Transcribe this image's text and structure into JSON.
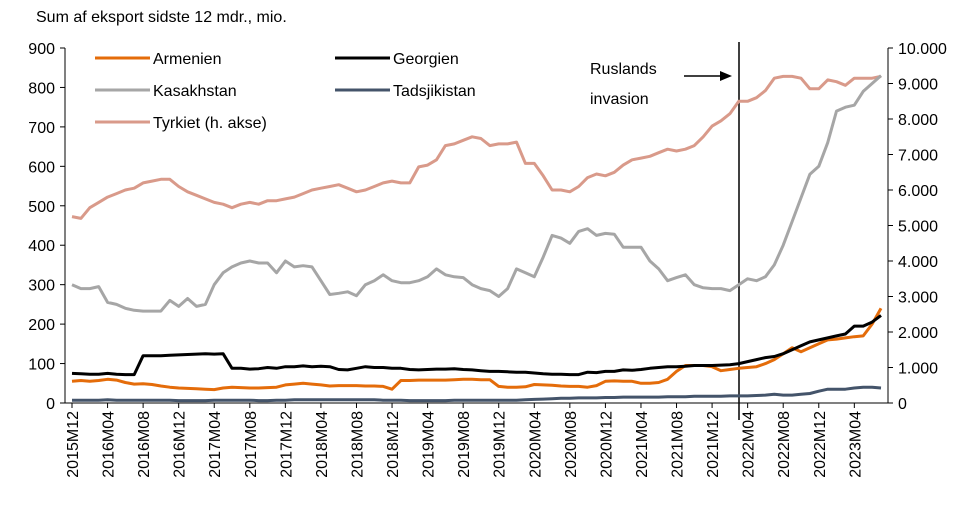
{
  "chart_data": {
    "type": "line",
    "y_label": "Sum af eksport sidste 12 mdr., mio.",
    "annotation": [
      "Ruslands",
      "invasion"
    ],
    "categories": [
      "2015M12",
      null,
      null,
      null,
      "2016M04",
      null,
      null,
      null,
      "2016M08",
      null,
      null,
      null,
      "2016M12",
      null,
      null,
      null,
      "2017M04",
      null,
      null,
      null,
      "2017M08",
      null,
      null,
      null,
      "2017M12",
      null,
      null,
      null,
      "2018M04",
      null,
      null,
      null,
      "2018M08",
      null,
      null,
      null,
      "2018M12",
      null,
      null,
      null,
      "2019M04",
      null,
      null,
      null,
      "2019M08",
      null,
      null,
      null,
      "2019M12",
      null,
      null,
      null,
      "2020M04",
      null,
      null,
      null,
      "2020M08",
      null,
      null,
      null,
      "2020M12",
      null,
      null,
      null,
      "2021M04",
      null,
      null,
      null,
      "2021M08",
      null,
      null,
      null,
      "2021M12",
      null,
      null,
      null,
      "2022M04",
      null,
      null,
      null,
      "2022M08",
      null,
      null,
      null,
      "2022M12",
      null,
      null,
      null,
      "2023M04",
      null,
      null,
      null
    ],
    "ylim": [
      0,
      900
    ],
    "yticks": [
      0,
      100,
      200,
      300,
      400,
      500,
      600,
      700,
      800,
      900
    ],
    "y2lim": [
      0,
      10000
    ],
    "y2ticks": [
      0,
      {
        "value": 1000,
        "label": "1.000"
      },
      {
        "value": 2000,
        "label": "2.000"
      },
      {
        "value": 3000,
        "label": "3.000"
      },
      {
        "value": 4000,
        "label": "4.000"
      },
      {
        "value": 5000,
        "label": "5.000"
      },
      {
        "value": 6000,
        "label": "6.000"
      },
      {
        "value": 7000,
        "label": "7.000"
      },
      {
        "value": 8000,
        "label": "8.000"
      },
      {
        "value": 9000,
        "label": "9.000"
      },
      {
        "value": 10000,
        "label": "10.000"
      }
    ],
    "legend": "top-left",
    "series": [
      {
        "name": "Armenien",
        "color": "#e46c0a",
        "values": [
          55,
          57,
          55,
          57,
          60,
          58,
          52,
          48,
          49,
          47,
          43,
          40,
          38,
          37,
          36,
          35,
          34,
          38,
          40,
          39,
          38,
          38,
          39,
          40,
          46,
          48,
          50,
          48,
          46,
          43,
          44,
          44,
          44,
          43,
          43,
          42,
          35,
          57,
          57,
          58,
          58,
          58,
          58,
          59,
          60,
          60,
          59,
          59,
          42,
          40,
          40,
          41,
          47,
          46,
          45,
          43,
          42,
          42,
          40,
          44,
          55,
          56,
          55,
          55,
          50,
          50,
          52,
          60,
          80,
          95,
          95,
          95,
          92,
          82,
          85,
          88,
          90,
          92,
          100,
          110,
          125,
          140,
          130,
          140,
          150,
          160,
          162,
          165,
          168,
          170,
          200,
          240
        ]
      },
      {
        "name": "Georgien",
        "color": "#000000",
        "values": [
          75,
          74,
          73,
          73,
          75,
          73,
          72,
          72,
          120,
          120,
          120,
          121,
          122,
          123,
          124,
          125,
          124,
          125,
          88,
          88,
          86,
          87,
          90,
          88,
          92,
          92,
          94,
          92,
          93,
          92,
          85,
          84,
          88,
          92,
          90,
          90,
          88,
          88,
          85,
          84,
          85,
          86,
          86,
          87,
          85,
          84,
          82,
          80,
          80,
          79,
          78,
          78,
          76,
          74,
          73,
          73,
          72,
          72,
          78,
          77,
          80,
          80,
          84,
          83,
          85,
          88,
          90,
          92,
          92,
          93,
          95,
          95,
          95,
          96,
          97,
          100,
          105,
          110,
          115,
          118,
          125,
          135,
          145,
          155,
          160,
          165,
          170,
          175,
          195,
          195,
          205,
          222
        ]
      },
      {
        "name": "Kasakhstan",
        "color": "#a6a6a6",
        "values": [
          300,
          290,
          290,
          295,
          255,
          250,
          240,
          235,
          233,
          233,
          233,
          260,
          245,
          265,
          245,
          250,
          300,
          330,
          345,
          355,
          360,
          355,
          355,
          330,
          360,
          345,
          348,
          345,
          310,
          275,
          278,
          282,
          272,
          300,
          310,
          325,
          310,
          305,
          305,
          310,
          320,
          340,
          325,
          320,
          318,
          300,
          290,
          285,
          270,
          290,
          340,
          330,
          320,
          370,
          425,
          418,
          405,
          435,
          442,
          425,
          430,
          428,
          395,
          395,
          395,
          360,
          340,
          310,
          318,
          325,
          300,
          292,
          290,
          290,
          285,
          300,
          315,
          310,
          320,
          350,
          400,
          460,
          520,
          580,
          600,
          660,
          740,
          750,
          755,
          790,
          810,
          830
        ]
      },
      {
        "name": "Tadsjikistan",
        "color": "#44546a",
        "values": [
          7,
          7,
          7,
          7,
          8,
          7,
          7,
          7,
          7,
          7,
          7,
          7,
          6,
          6,
          6,
          6,
          7,
          7,
          7,
          7,
          7,
          6,
          6,
          7,
          7,
          8,
          8,
          8,
          8,
          8,
          8,
          8,
          8,
          8,
          8,
          7,
          7,
          7,
          6,
          6,
          6,
          6,
          6,
          7,
          7,
          7,
          7,
          7,
          7,
          7,
          7,
          8,
          9,
          10,
          11,
          12,
          12,
          13,
          13,
          13,
          14,
          14,
          15,
          15,
          15,
          15,
          15,
          16,
          16,
          16,
          17,
          17,
          17,
          17,
          18,
          18,
          18,
          19,
          20,
          22,
          20,
          20,
          22,
          24,
          30,
          35,
          35,
          35,
          38,
          40,
          40,
          38
        ]
      },
      {
        "name": "Tyrkiet (h. akse)",
        "color": "#d99a8a",
        "axis": "y2",
        "values": [
          5250,
          5200,
          5500,
          5650,
          5800,
          5900,
          6000,
          6050,
          6200,
          6250,
          6300,
          6300,
          6100,
          5950,
          5850,
          5750,
          5650,
          5600,
          5500,
          5600,
          5650,
          5600,
          5700,
          5700,
          5750,
          5800,
          5900,
          6000,
          6050,
          6100,
          6150,
          6050,
          5950,
          6000,
          6100,
          6200,
          6250,
          6200,
          6200,
          6650,
          6700,
          6850,
          7250,
          7300,
          7400,
          7500,
          7450,
          7250,
          7300,
          7300,
          7350,
          6750,
          6750,
          6400,
          6000,
          6000,
          5950,
          6100,
          6350,
          6450,
          6400,
          6500,
          6700,
          6850,
          6900,
          6950,
          7050,
          7150,
          7100,
          7150,
          7250,
          7500,
          7800,
          7950,
          8150,
          8500,
          8500,
          8600,
          8800,
          9150,
          9200,
          9200,
          9150,
          8850,
          8850,
          9100,
          9050,
          8950,
          9150,
          9150,
          9150,
          9200
        ]
      }
    ]
  }
}
